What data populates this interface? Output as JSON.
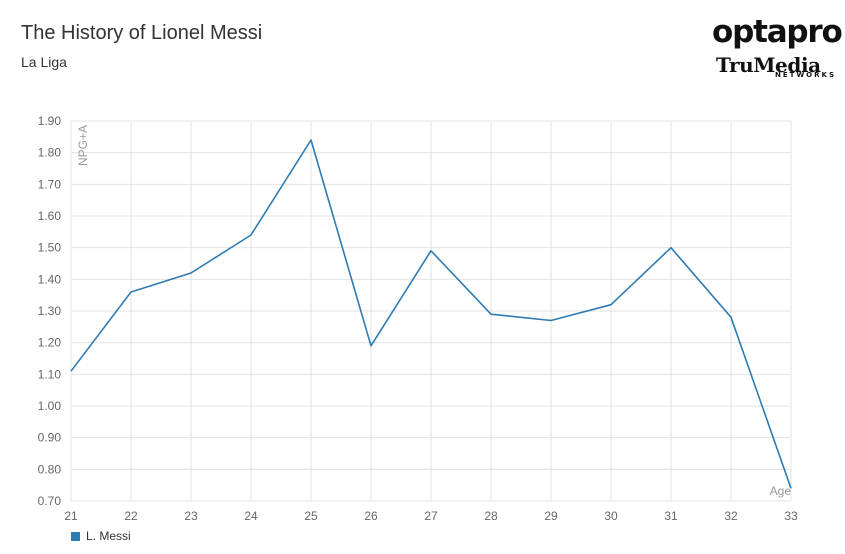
{
  "header": {
    "title": "The History of Lionel Messi",
    "subtitle": "La Liga"
  },
  "logo": {
    "top": "optapro",
    "middle": "TruMedia",
    "bottom": "NETWORKS"
  },
  "chart_data": {
    "type": "line",
    "xlabel": "Age",
    "ylabel": "NPG+A",
    "x": [
      21,
      22,
      23,
      24,
      25,
      26,
      27,
      28,
      29,
      30,
      31,
      32,
      33
    ],
    "xlim": [
      21,
      33
    ],
    "ylim": [
      0.7,
      1.9
    ],
    "yticks": [
      "0.70",
      "0.80",
      "0.90",
      "1.00",
      "1.10",
      "1.20",
      "1.30",
      "1.40",
      "1.50",
      "1.60",
      "1.70",
      "1.80",
      "1.90"
    ],
    "grid": true,
    "legend_position": "bottom-left",
    "series": [
      {
        "name": "L. Messi",
        "color": "#2e7bb3",
        "values": [
          1.11,
          1.36,
          1.42,
          1.54,
          1.84,
          1.19,
          1.49,
          1.29,
          1.27,
          1.32,
          1.5,
          1.28,
          0.74
        ]
      }
    ]
  }
}
